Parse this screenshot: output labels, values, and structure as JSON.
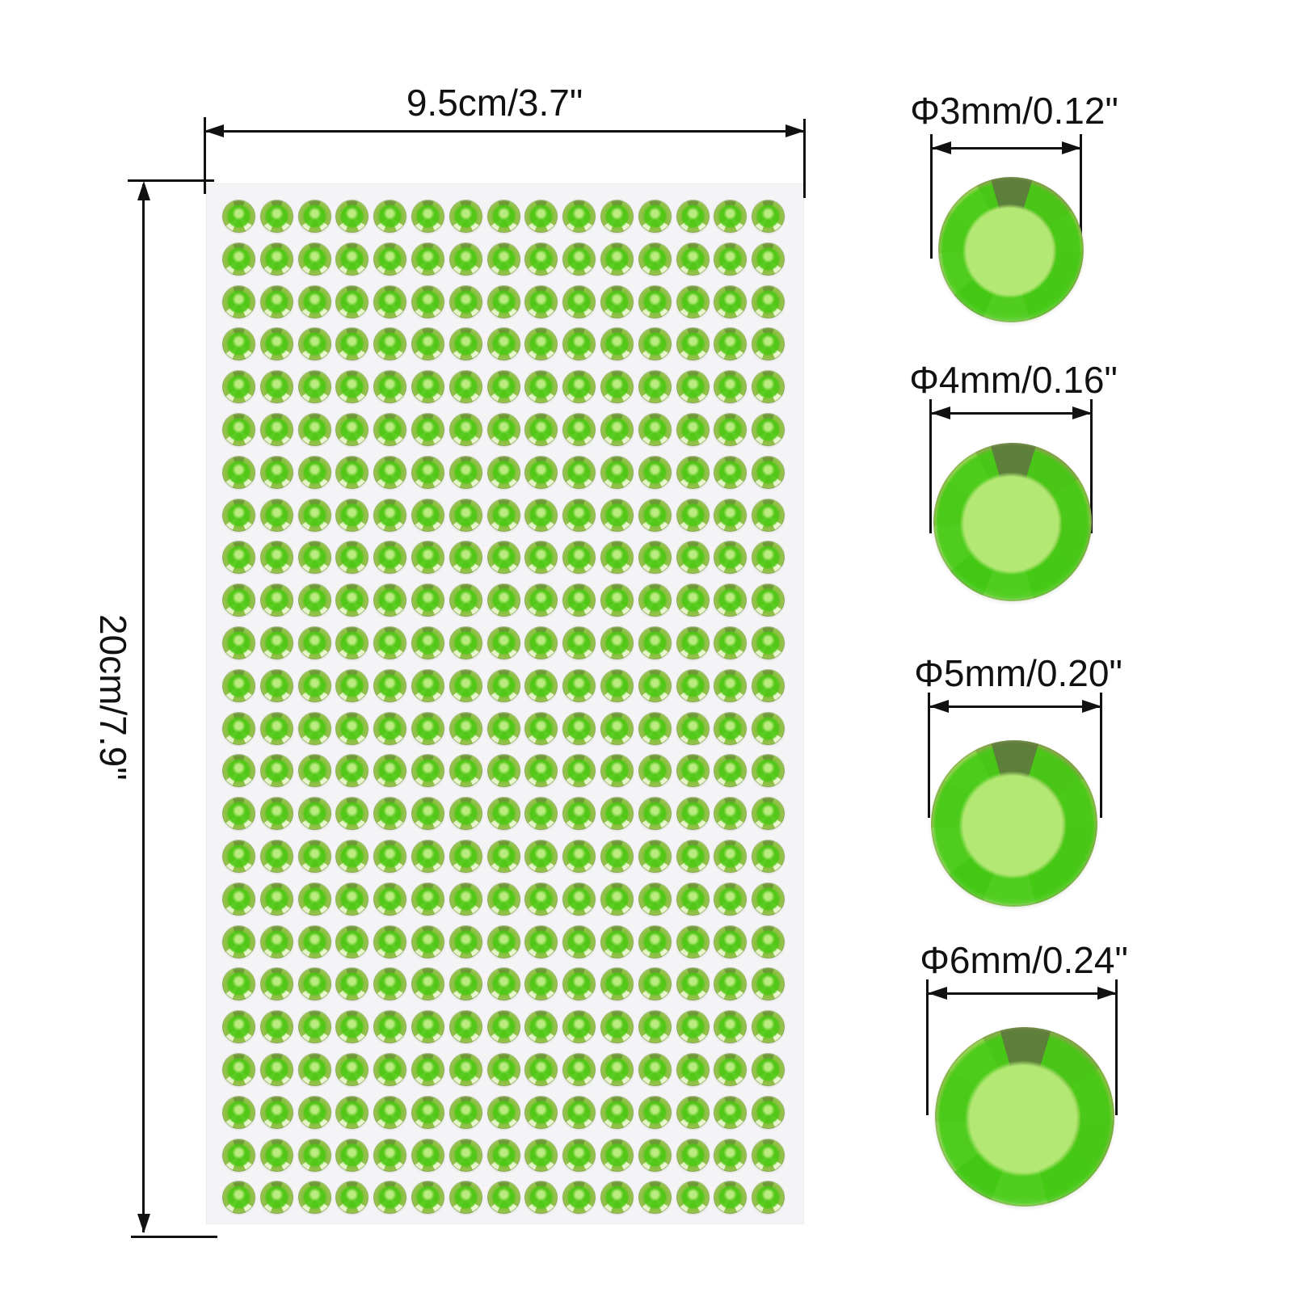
{
  "sheet": {
    "width_label": "9.5cm/3.7\"",
    "height_label": "20cm/7.9\"",
    "grid": {
      "rows": 24,
      "cols": 15
    }
  },
  "size_examples": [
    {
      "size": "3mm",
      "label": "Φ3mm/0.12\""
    },
    {
      "size": "4mm",
      "label": "Φ4mm/0.16\""
    },
    {
      "size": "5mm",
      "label": "Φ5mm/0.20\""
    },
    {
      "size": "6mm",
      "label": "Φ6mm/0.24\""
    }
  ],
  "colors": {
    "page_background": "#ffffff",
    "sheet_background": "#f4f4f6",
    "dimension_line": "#111111",
    "label_text": "#111111",
    "gem_vivid_green": "#3fca10",
    "gem_pale_center": "#b2e873",
    "gem_outer_facet": "#8fc142",
    "gem_dark_facet": "#5f763e"
  }
}
